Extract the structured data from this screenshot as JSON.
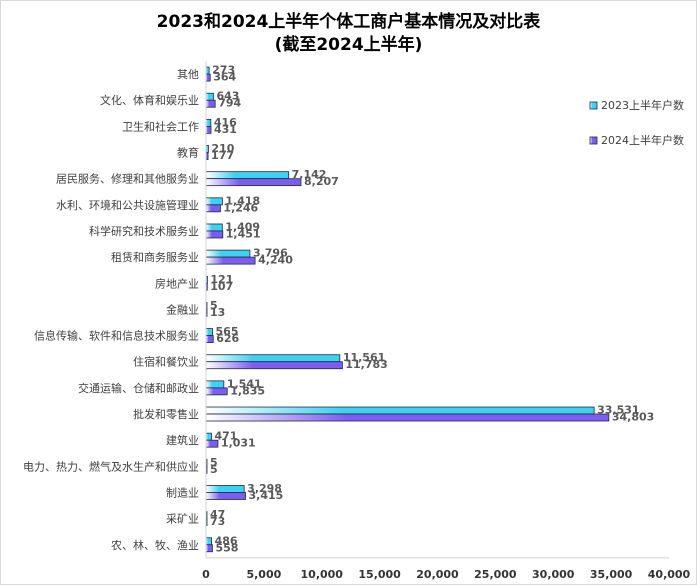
{
  "title_line1": "2023和2024上半年个体工商户基本情况及对比表",
  "title_line2": "(截至2024上半年)",
  "colors": {
    "series_2023": "#3fd1f0",
    "series_2024": "#7d5cf0",
    "axis": "#d0d0d0"
  },
  "chart_data": {
    "type": "bar",
    "orientation": "horizontal",
    "title": "2023和2024上半年个体工商户基本情况及对比表 (截至2024上半年)",
    "categories": [
      "其他",
      "文化、体育和娱乐业",
      "卫生和社会工作",
      "教育",
      "居民服务、修理和其他服务业",
      "水利、环境和公共设施管理业",
      "科学研究和技术服务业",
      "租赁和商务服务业",
      "房地产业",
      "金融业",
      "信息传输、软件和信息技术服务业",
      "住宿和餐饮业",
      "交通运输、仓储和邮政业",
      "批发和零售业",
      "建筑业",
      "电力、热力、燃气及水生产和供应业",
      "制造业",
      "采矿业",
      "农、林、牧、渔业"
    ],
    "series": [
      {
        "name": "2023上半年户数",
        "values": [
          273,
          643,
          416,
          210,
          7142,
          1418,
          1409,
          3796,
          121,
          5,
          565,
          11561,
          1541,
          33531,
          471,
          5,
          3298,
          47,
          486
        ]
      },
      {
        "name": "2024上半年户数",
        "values": [
          364,
          794,
          431,
          177,
          8207,
          1246,
          1451,
          4240,
          107,
          13,
          626,
          11783,
          1835,
          34803,
          1031,
          5,
          3415,
          73,
          558
        ]
      }
    ],
    "data_labels": [
      [
        "273",
        "643",
        "416",
        "210",
        "7,142",
        "1,418",
        "1,409",
        "3,796",
        "121",
        "5",
        "565",
        "11,561",
        "1,541",
        "33,531",
        "471",
        "5",
        "3,298",
        "47",
        "486"
      ],
      [
        "364",
        "794",
        "431",
        "177",
        "8,207",
        "1,246",
        "1,451",
        "4,240",
        "107",
        "13",
        "626",
        "11,783",
        "1,835",
        "34,803",
        "1,031",
        "5",
        "3,415",
        "73",
        "558"
      ]
    ],
    "xlim": [
      0,
      40000
    ],
    "x_ticks": [
      0,
      5000,
      10000,
      15000,
      20000,
      25000,
      30000,
      35000,
      40000
    ],
    "x_tick_labels": [
      "0",
      "5,000",
      "10,000",
      "15,000",
      "20,000",
      "25,000",
      "30,000",
      "35,000",
      "40,000"
    ],
    "grid": false,
    "legend_position": "right"
  }
}
